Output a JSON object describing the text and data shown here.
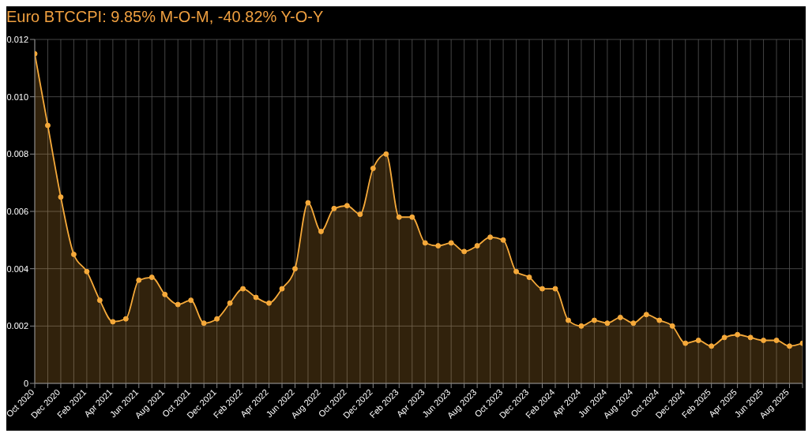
{
  "chart_data": {
    "type": "area",
    "title": "Euro BTCCPI: 9.85% M-O-M, -40.82% Y-O-Y",
    "categories": [
      "Oct 2020",
      null,
      "Dec 2020",
      null,
      "Feb 2021",
      null,
      "Apr 2021",
      null,
      "Jun 2021",
      null,
      "Aug 2021",
      null,
      "Oct 2021",
      null,
      "Dec 2021",
      null,
      "Feb 2022",
      null,
      "Apr 2022",
      null,
      "Jun 2022",
      null,
      "Aug 2022",
      null,
      "Oct 2022",
      null,
      "Dec 2022",
      null,
      "Feb 2023",
      null,
      "Apr 2023",
      null,
      "Jun 2023",
      null,
      "Aug 2023",
      null,
      "Oct 2023",
      null,
      "Dec 2023",
      null,
      "Feb 2024",
      null,
      "Apr 2024",
      null,
      "Jun 2024",
      null,
      "Aug 2024",
      null,
      "Oct 2024",
      null,
      "Dec 2024",
      null,
      "Feb 2025",
      null,
      "Apr 2025",
      null,
      "Jun 2025",
      null,
      "Aug 2025",
      null
    ],
    "series": [
      {
        "color": "#f5a93a",
        "values": [
          0.0115,
          0.009,
          0.0065,
          0.0045,
          0.0039,
          0.0029,
          0.00215,
          0.00225,
          0.0036,
          0.0037,
          0.0031,
          0.00275,
          0.0029,
          0.0021,
          0.00225,
          0.0028,
          0.0033,
          0.003,
          0.0028,
          0.0033,
          0.004,
          0.0063,
          0.0053,
          0.0061,
          0.0062,
          0.0059,
          0.0075,
          0.008,
          0.0058,
          0.0058,
          0.0049,
          0.0048,
          0.0049,
          0.0046,
          0.0048,
          0.0051,
          0.005,
          0.0039,
          0.0037,
          0.0033,
          0.0033,
          0.0022,
          0.002,
          0.0022,
          0.0021,
          0.0023,
          0.0021,
          0.0024,
          0.0022,
          0.002,
          0.0014,
          0.0015,
          0.0013,
          0.0016,
          0.0017,
          0.0016,
          0.0015,
          0.0015,
          0.0013,
          0.0014
        ]
      }
    ],
    "ylim": [
      0,
      0.012
    ],
    "yticks": [
      0,
      0.002,
      0.004,
      0.006,
      0.008,
      {
        "value": 0.01,
        "label": "0.010"
      },
      0.012
    ],
    "grid": true,
    "marker": "circle",
    "line_style": "solid"
  }
}
